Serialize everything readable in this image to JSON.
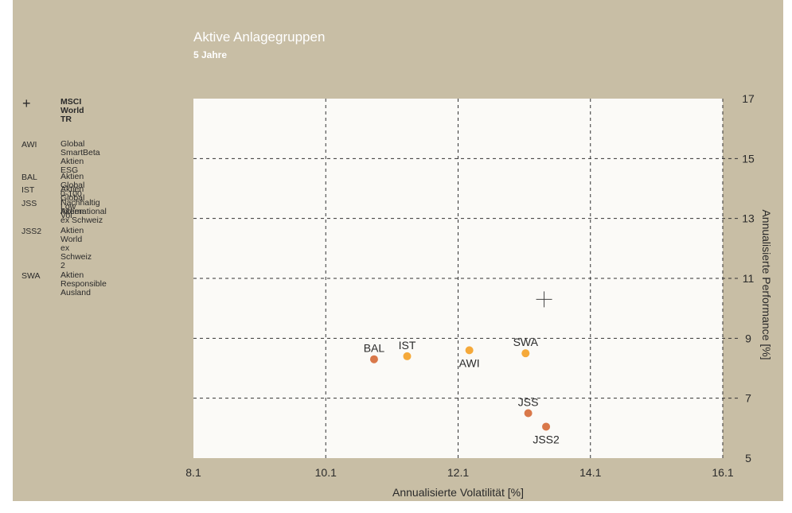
{
  "header": {
    "title": "Aktive Anlagegruppen",
    "subtitle": "5 Jahre"
  },
  "legend": [
    {
      "symbol": "cross-icon",
      "abbr": "",
      "name": "MSCI World TR",
      "bold": true
    },
    {
      "abbr": "AWI",
      "name": "Global SmartBeta Aktien ESG"
    },
    {
      "abbr": "BAL",
      "name": "Aktien Global 0-100 I"
    },
    {
      "abbr": "IST",
      "name": "Aktien Global Low Vol"
    },
    {
      "abbr": "JSS",
      "name": "Nachhaltig Aktien",
      "name2": "International ex Schweiz"
    },
    {
      "abbr": "JSS2",
      "name": "Aktien World ex Schweiz 2"
    },
    {
      "abbr": "SWA",
      "name": "Aktien Responsible Ausland"
    }
  ],
  "colors": {
    "panel": "#c8bea5",
    "plot": "#fbfaf7",
    "orange_light": "#f5a93a",
    "orange_dark": "#d9784a"
  },
  "chart_data": {
    "type": "scatter",
    "xlabel": "Annualisierte Volatilität [%]",
    "ylabel": "Annualisierte Performance [%]",
    "xlim": [
      8.1,
      16.1
    ],
    "ylim": [
      5,
      17
    ],
    "xticks": [
      8.1,
      10.1,
      12.1,
      14.1,
      16.1
    ],
    "yticks": [
      5,
      7,
      9,
      11,
      13,
      15,
      17
    ],
    "xticklabels": [
      "8.1",
      "10.1",
      "12.1",
      "14.1",
      "16.1"
    ],
    "yticklabels": [
      "5",
      "7",
      "9",
      "11",
      "13",
      "15",
      "17"
    ],
    "grid": true,
    "points": [
      {
        "label": "BAL",
        "x": 10.83,
        "y": 8.3,
        "color": "#d9784a",
        "label_pos": "above"
      },
      {
        "label": "IST",
        "x": 11.33,
        "y": 8.4,
        "color": "#f5a93a",
        "label_pos": "above"
      },
      {
        "label": "AWI",
        "x": 12.27,
        "y": 8.6,
        "color": "#f5a93a",
        "label_pos": "below"
      },
      {
        "label": "SWA",
        "x": 13.12,
        "y": 8.5,
        "color": "#f5a93a",
        "label_pos": "above"
      },
      {
        "label": "JSS",
        "x": 13.16,
        "y": 6.5,
        "color": "#d9784a",
        "label_pos": "above"
      },
      {
        "label": "JSS2",
        "x": 13.43,
        "y": 6.05,
        "color": "#d9784a",
        "label_pos": "below"
      }
    ],
    "benchmark": {
      "label": "MSCI World TR",
      "x": 13.4,
      "y": 10.3,
      "marker": "cross"
    }
  }
}
